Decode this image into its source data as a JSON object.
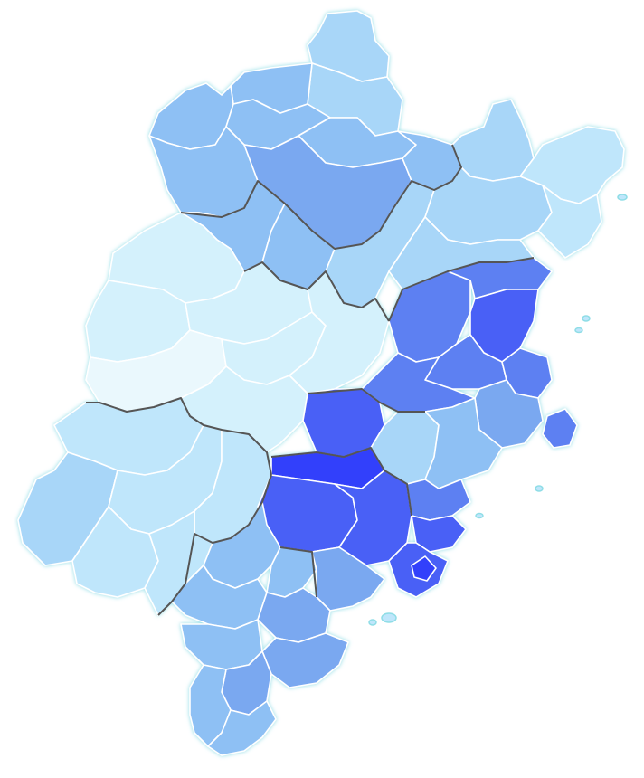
{
  "map": {
    "region": "choropleth-map",
    "scale_colors": {
      "palest": "#eaf8fd",
      "very_light": "#d4f1fc",
      "light": "#bfe6fb",
      "light_medium": "#a8d6f8",
      "medium": "#8ec0f4",
      "medium_strong": "#7aa8f0",
      "strong": "#5d80f2",
      "stronger": "#4a60f6",
      "strongest": "#3040fb"
    },
    "border_color": "#555555",
    "coast_glow": "#8fdde6"
  }
}
